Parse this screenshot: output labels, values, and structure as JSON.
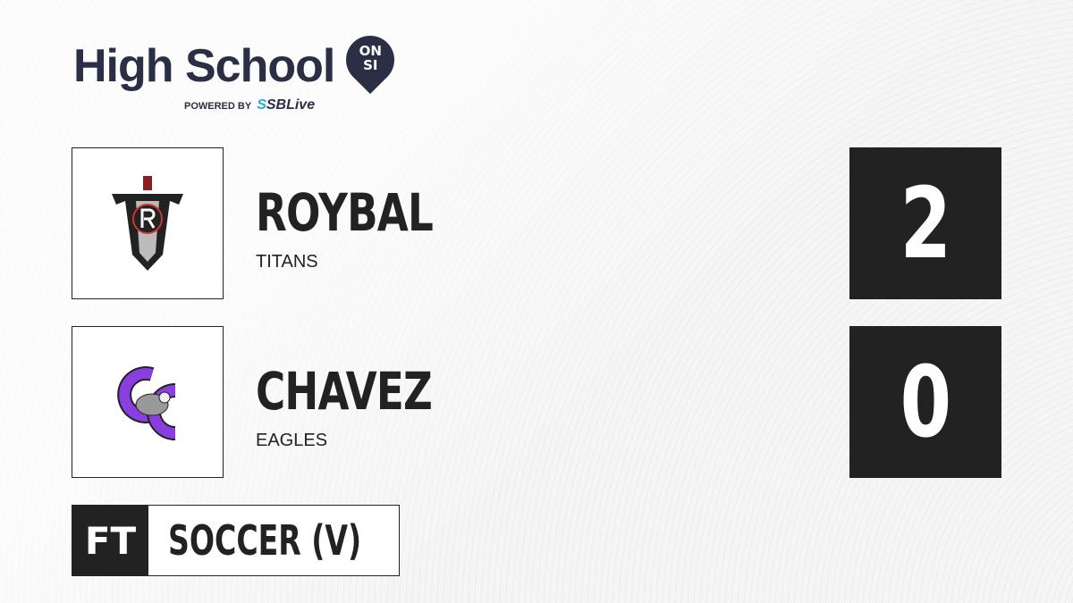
{
  "brand": {
    "title": "High School",
    "badge_line1": "ON",
    "badge_line2": "SI",
    "powered_by": "POWERED BY",
    "partner_prefix": "S",
    "partner": "SBLive",
    "colors": {
      "navy": "#2b2f45",
      "blue": "#29a8e0"
    }
  },
  "teams": [
    {
      "name": "ROYBAL",
      "mascot": "TITANS",
      "score": "2",
      "logo_icon": "titans-sword-icon"
    },
    {
      "name": "CHAVEZ",
      "mascot": "EAGLES",
      "score": "0",
      "logo_icon": "eagles-cc-icon"
    }
  ],
  "game": {
    "status": "FT",
    "sport": "SOCCER (V)"
  }
}
